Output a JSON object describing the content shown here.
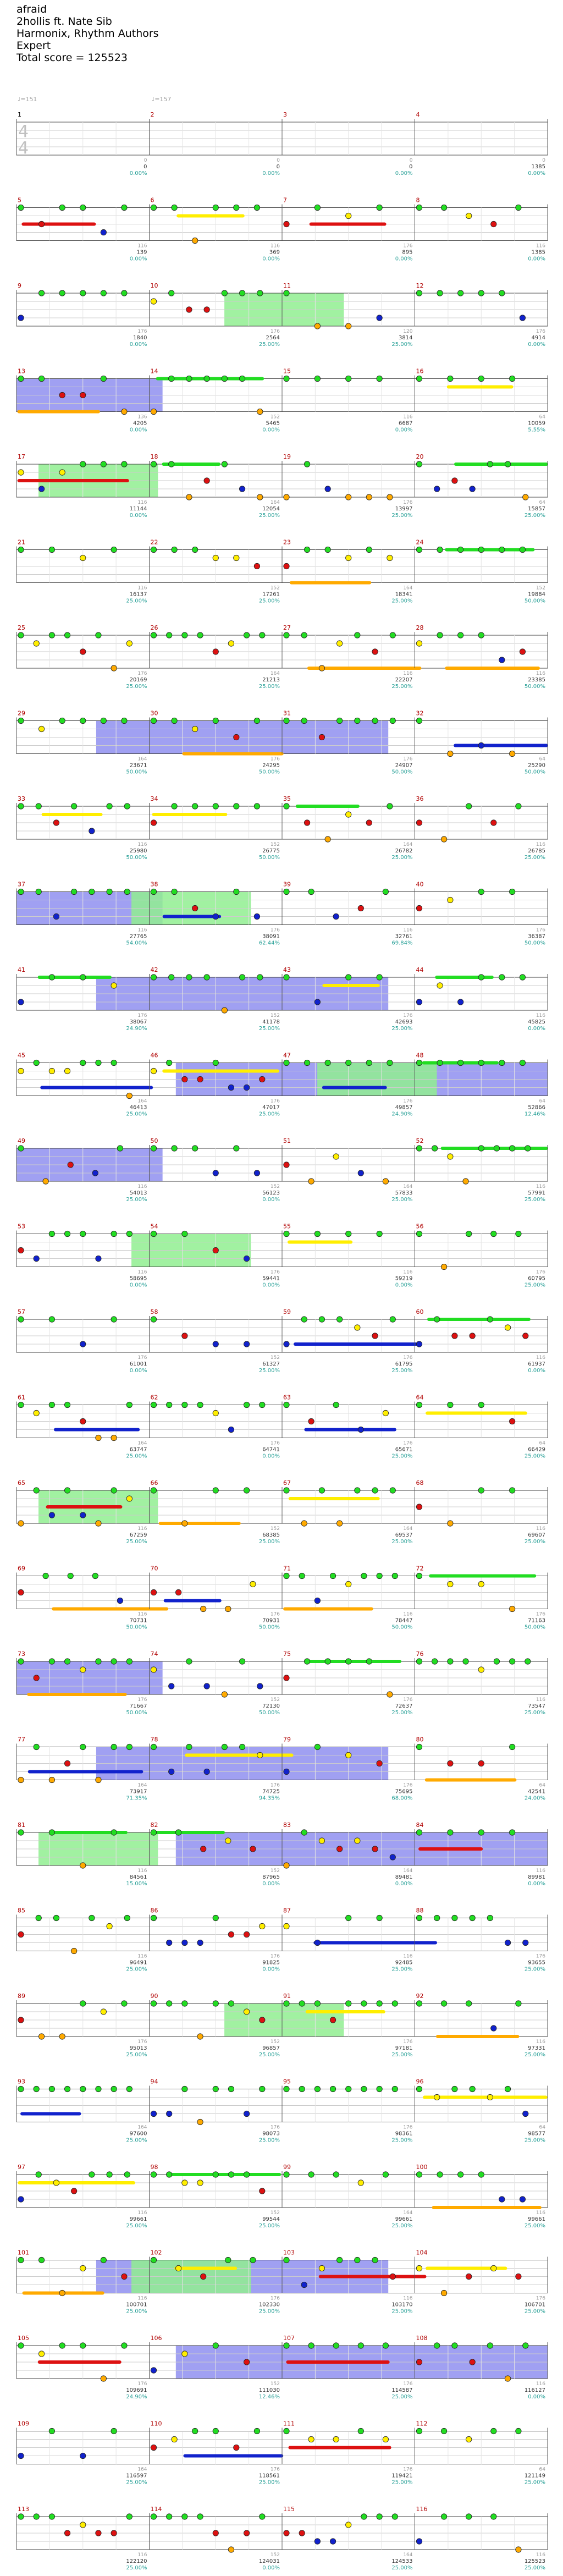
{
  "header": {
    "song_title": "afraid",
    "artist": "2hollis ft. Nate Sib",
    "charters": "Harmonix, Rhythm Authors",
    "difficulty": "Expert",
    "total_score": "Total score = 125523"
  },
  "tempo_markings": [
    "♩=151",
    "♩=157"
  ],
  "time_signature": {
    "top": "4",
    "bottom": "4"
  },
  "colors": {
    "green": "#22dd22",
    "red": "#dd1111",
    "yellow": "#ffee00",
    "blue": "#1122cc",
    "orange": "#ffaa00",
    "overdrive": "#8080ee",
    "solo": "#90ee90",
    "measure_num_first": "#000000",
    "measure_num": "#b00000",
    "score_teal": "#2aa198",
    "beat_grey": "#999999"
  },
  "note_lanes": [
    "green",
    "red",
    "yellow",
    "blue",
    "orange"
  ],
  "measure_numbers": [
    1,
    2,
    3,
    4,
    5,
    6,
    7,
    8,
    9,
    10,
    11,
    12,
    13,
    14,
    15,
    16,
    17,
    18,
    19,
    20,
    21,
    22,
    23,
    24,
    25,
    26,
    27,
    28,
    29,
    30,
    31,
    32,
    33,
    34,
    35,
    36,
    37,
    38,
    39,
    40,
    41,
    42,
    43,
    44,
    45,
    46,
    47,
    48,
    49,
    50,
    51,
    52,
    53,
    54,
    55,
    56,
    57,
    58,
    59,
    60,
    61,
    62,
    63,
    64,
    65,
    66,
    67,
    68,
    69,
    70,
    71,
    72,
    73,
    74,
    75,
    76,
    77,
    78,
    79,
    80,
    81,
    82,
    83,
    84,
    85,
    86,
    87,
    88,
    89,
    90,
    91,
    92,
    93,
    94,
    95,
    96,
    97,
    98,
    99,
    100,
    101,
    102,
    103,
    104,
    105,
    106,
    107,
    108,
    109,
    110,
    111,
    112,
    113,
    114,
    115,
    116
  ],
  "measure_notes": [
    "0",
    "0",
    "0",
    "0",
    "116",
    "116",
    "176",
    "116",
    "176",
    "176",
    "120",
    "176",
    "136",
    "152",
    "116",
    "64",
    "116",
    "164",
    "176",
    "64",
    "116",
    "152",
    "164",
    "152",
    "176",
    "164",
    "116",
    "116",
    "164",
    "176",
    "176",
    "64",
    "116",
    "152",
    "164",
    "116",
    "116",
    "176",
    "116",
    "176",
    "176",
    "152",
    "176",
    "116",
    "164",
    "176",
    "176",
    "64",
    "116",
    "152",
    "164",
    "116",
    "116",
    "176",
    "116",
    "176",
    "176",
    "152",
    "176",
    "116",
    "164",
    "176",
    "176",
    "64",
    "116",
    "152",
    "164",
    "116",
    "116",
    "176",
    "116",
    "176",
    "176",
    "152",
    "176",
    "116",
    "164",
    "176",
    "176",
    "64",
    "116",
    "152",
    "164",
    "116",
    "116",
    "176",
    "116",
    "176",
    "176",
    "152",
    "176",
    "116",
    "164",
    "176",
    "176",
    "64",
    "116",
    "152",
    "164",
    "116",
    "116",
    "176",
    "116",
    "176",
    "176",
    "152",
    "176",
    "116",
    "164",
    "176",
    "176",
    "64",
    "116",
    "152",
    "164",
    "116"
  ],
  "measure_scores": [
    "0",
    "0",
    "0",
    "1385",
    "139",
    "369",
    "895",
    "1385",
    "1840",
    "2564",
    "3814",
    "4914",
    "4205",
    "5465",
    "6687",
    "10059",
    "11144",
    "12054",
    "13997",
    "15857",
    "16137",
    "17261",
    "18341",
    "19884",
    "20169",
    "21213",
    "22207",
    "23385",
    "23671",
    "24295",
    "24907",
    "25290",
    "25980",
    "26775",
    "26782",
    "26785",
    "27765",
    "38091",
    "32761",
    "36387",
    "38067",
    "41178",
    "42693",
    "45825",
    "46413",
    "47017",
    "49857",
    "52866",
    "54013",
    "56123",
    "57833",
    "57991",
    "58695",
    "59441",
    "59219",
    "60795",
    "61001",
    "61327",
    "61795",
    "61937",
    "63747",
    "64741",
    "65671",
    "66429",
    "67259",
    "68385",
    "69537",
    "69607",
    "70731",
    "70931",
    "78447",
    "71163",
    "71667",
    "72130",
    "72637",
    "73547",
    "73917",
    "74725",
    "75695",
    "42541",
    "84561",
    "87965",
    "89481",
    "89981",
    "96491",
    "91825",
    "92485",
    "93655",
    "95013",
    "96857",
    "97181",
    "97331",
    "97600",
    "98073",
    "98361",
    "98577",
    "99661",
    "99544",
    "99661",
    "99661",
    "100701",
    "102330",
    "103170",
    "106701",
    "109691",
    "111030",
    "114587",
    "116127",
    "116597",
    "118561",
    "119421",
    "121149",
    "122120",
    "124031",
    "124533",
    "125523"
  ],
  "measure_percents": [
    "0.00%",
    "0.00%",
    "0.00%",
    "0.00%",
    "0.00%",
    "0.00%",
    "0.00%",
    "0.00%",
    "0.00%",
    "25.00%",
    "25.00%",
    "0.00%",
    "0.00%",
    "0.00%",
    "0.00%",
    "5.55%",
    "0.00%",
    "25.00%",
    "25.00%",
    "25.00%",
    "25.00%",
    "25.00%",
    "25.00%",
    "50.00%",
    "25.00%",
    "25.00%",
    "25.00%",
    "50.00%",
    "50.00%",
    "50.00%",
    "50.00%",
    "50.00%",
    "50.00%",
    "50.00%",
    "25.00%",
    "25.00%",
    "54.00%",
    "62.44%",
    "69.84%",
    "50.00%",
    "24.90%",
    "25.00%",
    "25.00%",
    "0.00%",
    "25.00%",
    "25.00%",
    "24.90%",
    "12.46%",
    "25.00%",
    "0.00%",
    "25.00%",
    "25.00%",
    "0.00%",
    "0.00%",
    "0.00%",
    "25.00%",
    "0.00%",
    "25.00%",
    "25.00%",
    "0.00%",
    "25.00%",
    "0.00%",
    "25.00%",
    "25.00%",
    "25.00%",
    "25.00%",
    "25.00%",
    "25.00%",
    "50.00%",
    "50.00%",
    "50.00%",
    "50.00%",
    "50.00%",
    "50.00%",
    "25.00%",
    "25.00%",
    "71.35%",
    "94.35%",
    "68.00%",
    "24.00%",
    "15.00%",
    "0.00%",
    "0.00%",
    "0.00%",
    "25.00%",
    "0.00%",
    "25.00%",
    "25.00%",
    "25.00%",
    "25.00%",
    "25.00%",
    "25.00%",
    "25.00%",
    "25.00%",
    "25.00%",
    "25.00%",
    "25.00%",
    "25.00%",
    "25.00%",
    "25.00%",
    "25.00%",
    "25.00%",
    "25.00%",
    "25.00%",
    "24.90%",
    "12.46%",
    "25.00%",
    "0.00%",
    "25.00%",
    "25.00%",
    "25.00%",
    "25.00%",
    "25.00%",
    "0.00%",
    "25.00%",
    "25.00%"
  ]
}
